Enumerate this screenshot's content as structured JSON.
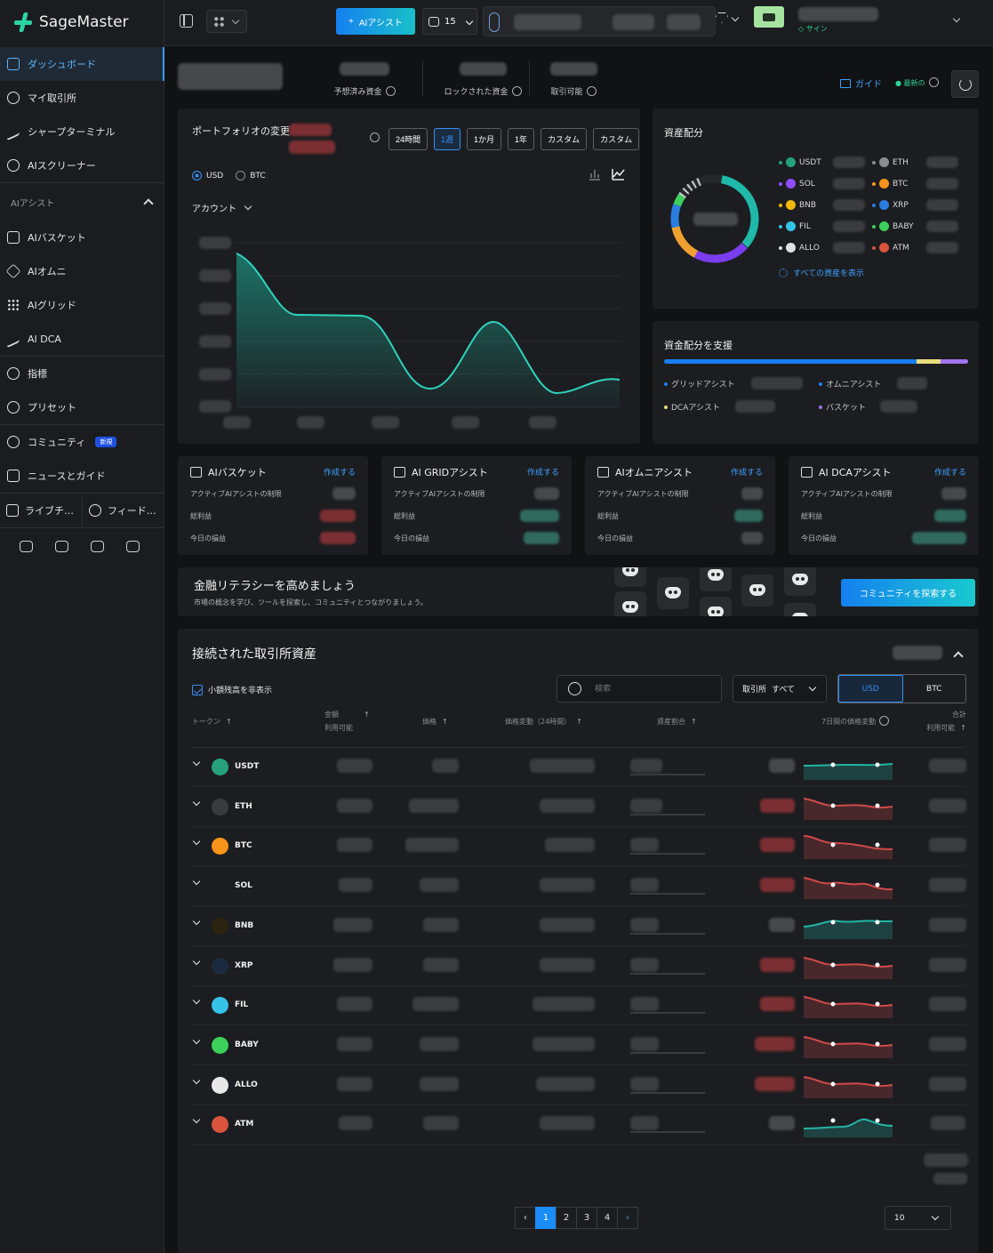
{
  "brand": "SageMaster",
  "nav": {
    "dashboard": "ダッシュボード",
    "my_exchange": "マイ取引所",
    "sharp_terminal": "シャープターミナル",
    "ai_screener": "AIスクリーナー",
    "ai_assist_section": "AIアシスト",
    "ai_basket": "AIバスケット",
    "ai_omni": "AIオムニ",
    "ai_grid": "AIグリッド",
    "ai_dca": "AI DCA",
    "indicators": "指標",
    "presets": "プリセット",
    "community": "コミュニティ",
    "new_badge": "新規",
    "news_guide": "ニュースとガイド",
    "live": "ライブチ…",
    "feedback": "フィード…"
  },
  "topbar": {
    "ai_assist_button": "AIアシスト",
    "bot_count": "15",
    "sign": "サイン"
  },
  "header": {
    "reserved": "予想済み資金",
    "locked": "ロックされた資金",
    "available": "取引可能",
    "guide": "ガイド",
    "latest": "最新の"
  },
  "portfolio": {
    "title": "ポートフォリオの変更",
    "ranges": [
      "24時間",
      "1週",
      "1か月",
      "1年",
      "カスタム",
      "カスタム"
    ],
    "active_range": "1週",
    "currency_usd": "USD",
    "currency_btc": "BTC",
    "account": "アカウント"
  },
  "allocation": {
    "title": "資産配分",
    "tokens": [
      {
        "sym": "USDT",
        "color": "#26a17b"
      },
      {
        "sym": "ETH",
        "color": "#8a8c90"
      },
      {
        "sym": "SOL",
        "color": "#8f4dff"
      },
      {
        "sym": "BTC",
        "color": "#f7931a"
      },
      {
        "sym": "BNB",
        "color": "#f0b90b"
      },
      {
        "sym": "XRP",
        "color": "#2b7de1"
      },
      {
        "sym": "FIL",
        "color": "#36c2e8"
      },
      {
        "sym": "BABY",
        "color": "#3bcf5b"
      },
      {
        "sym": "ALLO",
        "color": "#e0e0e0"
      },
      {
        "sym": "ATM",
        "color": "#d9533f"
      }
    ],
    "show_all": "すべての資産を表示"
  },
  "fund": {
    "title": "資金配分を支援",
    "grid": "グリッドアシスト",
    "omni": "オムニアシスト",
    "dca": "DCAアシスト",
    "basket": "バスケット"
  },
  "assist_cards": [
    {
      "title": "AIバスケット",
      "create": "作成する",
      "limit": "アクティブAIアシストの制限",
      "profit": "総利益",
      "today": "今日の損益"
    },
    {
      "title": "AI GRIDアシスト",
      "create": "作成する",
      "limit": "アクティブAIアシストの制限",
      "profit": "総利益",
      "today": "今日の損益"
    },
    {
      "title": "AIオムニアシスト",
      "create": "作成する",
      "limit": "アクティブAIアシストの制限",
      "profit": "総利益",
      "today": "今日の損益"
    },
    {
      "title": "AI DCAアシスト",
      "create": "作成する",
      "limit": "アクティブAIアシストの制限",
      "profit": "総利益",
      "today": "今日の損益"
    }
  ],
  "literacy": {
    "title": "金融リテラシーを高めましょう",
    "subtitle": "市場の概念を学び、ツールを探索し、コミュニティとつながりましょう。",
    "button": "コミュニティを探索する"
  },
  "assets": {
    "title": "接続された取引所資産",
    "hide_small": "小額残高を非表示",
    "search_placeholder": "検索",
    "exchange_label": "取引所",
    "exchange_value": "すべて",
    "usd": "USD",
    "btc": "BTC",
    "cols": {
      "token": "トークン",
      "amount": "金額",
      "amount_sub": "利用可能",
      "price": "価格",
      "change": "価格変動（24時間）",
      "share": "資産割合",
      "spark": "7日間の価格変動",
      "total": "合計",
      "total_sub": "利用可能"
    },
    "rows": [
      {
        "sym": "USDT",
        "color": "#26a17b",
        "trend": "flat-up"
      },
      {
        "sym": "ETH",
        "color": "#3a3b3f",
        "trend": "down"
      },
      {
        "sym": "BTC",
        "color": "#f7931a",
        "trend": "down"
      },
      {
        "sym": "SOL",
        "color": "#1b1c20",
        "trend": "down"
      },
      {
        "sym": "BNB",
        "color": "#2a2410",
        "trend": "up"
      },
      {
        "sym": "XRP",
        "color": "#1c2a40",
        "trend": "down"
      },
      {
        "sym": "FIL",
        "color": "#36c2e8",
        "trend": "down"
      },
      {
        "sym": "BABY",
        "color": "#3bcf5b",
        "trend": "down"
      },
      {
        "sym": "ALLO",
        "color": "#e8e8e8",
        "trend": "down"
      },
      {
        "sym": "ATM",
        "color": "#d9533f",
        "trend": "up"
      }
    ],
    "pages": [
      "1",
      "2",
      "3",
      "4"
    ],
    "active_page": "1",
    "per_page": "10"
  }
}
